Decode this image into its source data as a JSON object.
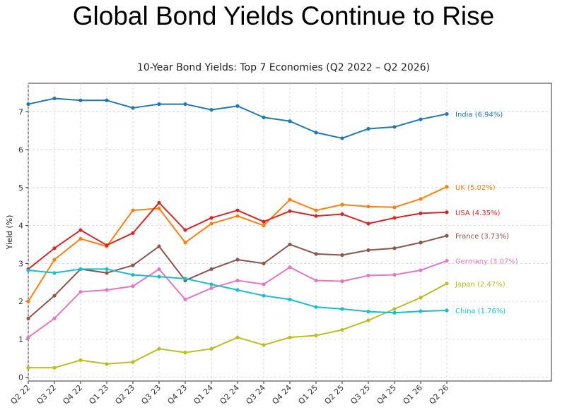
{
  "header": {
    "title": "Global Bond Yields Continue to Rise"
  },
  "chart_data": {
    "type": "line",
    "title": "10-Year Bond Yields: Top 7 Economies (Q2 2022 – Q2 2026)",
    "xlabel": "",
    "ylabel": "Yield (%)",
    "categories": [
      "Q2 22",
      "Q3 22",
      "Q4 22",
      "Q1 23",
      "Q2 23",
      "Q3 23",
      "Q4 23",
      "Q1 24",
      "Q2 24",
      "Q3 24",
      "Q4 24",
      "Q1 25",
      "Q2 25",
      "Q3 25",
      "Q4 25",
      "Q1 26",
      "Q2 26"
    ],
    "ylim": [
      -0.1,
      7.75
    ],
    "yticks": [
      0,
      1,
      2,
      3,
      4,
      5,
      6,
      7
    ],
    "grid": true,
    "legend": "end-of-line labels",
    "series": [
      {
        "name": "India",
        "end_label": "India (6.94%)",
        "color": "#1f77b4",
        "values": [
          7.2,
          7.35,
          7.3,
          7.3,
          7.1,
          7.2,
          7.2,
          7.05,
          7.15,
          6.85,
          6.75,
          6.45,
          6.3,
          6.55,
          6.6,
          6.8,
          6.94
        ]
      },
      {
        "name": "UK",
        "end_label": "UK (5.02%)",
        "color": "#ff7f0e",
        "values": [
          2.0,
          3.1,
          3.65,
          3.45,
          4.4,
          4.45,
          3.55,
          4.05,
          4.25,
          4.0,
          4.68,
          4.4,
          4.55,
          4.5,
          4.48,
          4.7,
          5.02
        ]
      },
      {
        "name": "USA",
        "end_label": "USA (4.35%)",
        "color": "#d62728",
        "values": [
          2.85,
          3.4,
          3.88,
          3.48,
          3.8,
          4.6,
          3.88,
          4.2,
          4.4,
          4.1,
          4.38,
          4.25,
          4.3,
          4.05,
          4.2,
          4.32,
          4.35
        ]
      },
      {
        "name": "France",
        "end_label": "France (3.73%)",
        "color": "#8c564b",
        "values": [
          1.55,
          2.15,
          2.85,
          2.75,
          2.95,
          3.45,
          2.55,
          2.85,
          3.1,
          3.0,
          3.5,
          3.25,
          3.22,
          3.35,
          3.4,
          3.55,
          3.73
        ]
      },
      {
        "name": "Germany",
        "end_label": "Germany (3.07%)",
        "color": "#e377c2",
        "values": [
          1.05,
          1.55,
          2.25,
          2.3,
          2.4,
          2.85,
          2.05,
          2.35,
          2.55,
          2.45,
          2.9,
          2.55,
          2.53,
          2.68,
          2.7,
          2.82,
          3.07
        ]
      },
      {
        "name": "Japan",
        "end_label": "Japan (2.47%)",
        "color": "#bcbd22",
        "values": [
          0.25,
          0.25,
          0.45,
          0.35,
          0.4,
          0.75,
          0.65,
          0.75,
          1.05,
          0.85,
          1.05,
          1.1,
          1.25,
          1.5,
          1.8,
          2.1,
          2.47
        ]
      },
      {
        "name": "China",
        "end_label": "China (1.76%)",
        "color": "#17becf",
        "values": [
          2.82,
          2.75,
          2.85,
          2.85,
          2.7,
          2.65,
          2.6,
          2.45,
          2.3,
          2.15,
          2.05,
          1.85,
          1.8,
          1.73,
          1.7,
          1.74,
          1.76
        ]
      }
    ]
  }
}
